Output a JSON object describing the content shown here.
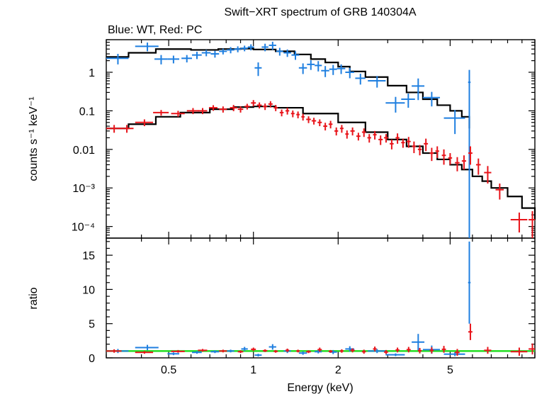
{
  "title": "Swift−XRT spectrum of GRB 140304A",
  "subtitle": "Blue: WT, Red: PC",
  "colors": {
    "wt": "#1f7fe0",
    "pc": "#e8141a",
    "model": "#000000",
    "unity": "#22dd22"
  },
  "chart_data": [
    {
      "type": "scatter",
      "panel": "spectrum",
      "xlabel": "Energy (keV)",
      "ylabel": "counts s⁻¹ keV⁻¹",
      "xscale": "log",
      "yscale": "log",
      "xlim": [
        0.3,
        10
      ],
      "ylim": [
        5e-05,
        7
      ],
      "yticks": [
        {
          "value": 1,
          "label": "1"
        },
        {
          "value": 0.1,
          "label": "0.1"
        },
        {
          "value": 0.01,
          "label": "0.01"
        },
        {
          "value": 0.001,
          "label": "10⁻³"
        },
        {
          "value": 0.0001,
          "label": "10⁻⁴"
        }
      ],
      "series": [
        {
          "name": "WT",
          "x": [
            0.33,
            0.42,
            0.47,
            0.52,
            0.58,
            0.63,
            0.68,
            0.73,
            0.78,
            0.83,
            0.88,
            0.93,
            0.98,
            1.04,
            1.1,
            1.17,
            1.24,
            1.32,
            1.41,
            1.5,
            1.6,
            1.7,
            1.8,
            1.92,
            2.05,
            2.2,
            2.4,
            2.75,
            3.2,
            3.55,
            3.85,
            4.3,
            5.2,
            5.85
          ],
          "xerr": [
            0.03,
            0.04,
            0.025,
            0.025,
            0.025,
            0.025,
            0.025,
            0.025,
            0.025,
            0.025,
            0.025,
            0.025,
            0.025,
            0.03,
            0.03,
            0.035,
            0.035,
            0.04,
            0.045,
            0.05,
            0.05,
            0.05,
            0.06,
            0.06,
            0.07,
            0.08,
            0.1,
            0.2,
            0.25,
            0.2,
            0.2,
            0.3,
            0.45,
            0.06
          ],
          "y": [
            2.3,
            4.7,
            2.2,
            2.2,
            2.3,
            2.8,
            3.2,
            3.0,
            3.5,
            3.8,
            4.0,
            4.2,
            4.5,
            1.3,
            4.5,
            5.0,
            3.5,
            3.2,
            2.8,
            1.3,
            1.6,
            1.5,
            1.1,
            1.2,
            1.25,
            1.0,
            0.7,
            0.6,
            0.16,
            0.2,
            0.44,
            0.22,
            0.065,
            0.55
          ],
          "yerr": [
            0.7,
            1.2,
            0.6,
            0.5,
            0.5,
            0.6,
            0.6,
            0.6,
            0.6,
            0.7,
            0.7,
            0.7,
            0.8,
            0.5,
            1.0,
            1.2,
            0.8,
            0.7,
            0.7,
            0.4,
            0.45,
            0.45,
            0.35,
            0.35,
            0.35,
            0.3,
            0.22,
            0.2,
            0.07,
            0.08,
            0.25,
            0.09,
            0.04,
            0.6
          ]
        },
        {
          "name": "PC",
          "x": [
            0.32,
            0.355,
            0.41,
            0.47,
            0.54,
            0.61,
            0.66,
            0.72,
            0.78,
            0.85,
            0.9,
            0.95,
            1.0,
            1.05,
            1.1,
            1.15,
            1.2,
            1.26,
            1.32,
            1.38,
            1.44,
            1.5,
            1.57,
            1.64,
            1.72,
            1.8,
            1.88,
            1.97,
            2.06,
            2.15,
            2.25,
            2.36,
            2.47,
            2.58,
            2.7,
            2.83,
            2.96,
            3.1,
            3.25,
            3.4,
            3.56,
            3.72,
            3.9,
            4.1,
            4.3,
            4.5,
            4.75,
            5.0,
            5.3,
            5.6,
            5.9,
            6.3,
            6.8,
            7.5,
            8.8,
            9.8
          ],
          "xerr": [
            0.02,
            0.02,
            0.03,
            0.03,
            0.03,
            0.03,
            0.025,
            0.025,
            0.025,
            0.025,
            0.02,
            0.02,
            0.02,
            0.02,
            0.02,
            0.02,
            0.02,
            0.02,
            0.02,
            0.02,
            0.02,
            0.02,
            0.03,
            0.03,
            0.03,
            0.03,
            0.03,
            0.03,
            0.03,
            0.03,
            0.04,
            0.04,
            0.04,
            0.04,
            0.04,
            0.05,
            0.05,
            0.05,
            0.05,
            0.05,
            0.06,
            0.06,
            0.06,
            0.07,
            0.07,
            0.07,
            0.08,
            0.08,
            0.1,
            0.1,
            0.1,
            0.12,
            0.2,
            0.25,
            0.6,
            0.3
          ],
          "y": [
            0.035,
            0.035,
            0.05,
            0.09,
            0.085,
            0.1,
            0.1,
            0.12,
            0.11,
            0.12,
            0.11,
            0.13,
            0.16,
            0.14,
            0.13,
            0.15,
            0.12,
            0.09,
            0.1,
            0.085,
            0.08,
            0.07,
            0.06,
            0.055,
            0.05,
            0.04,
            0.045,
            0.03,
            0.035,
            0.025,
            0.03,
            0.022,
            0.028,
            0.02,
            0.024,
            0.018,
            0.02,
            0.014,
            0.02,
            0.015,
            0.016,
            0.012,
            0.01,
            0.014,
            0.008,
            0.009,
            0.007,
            0.006,
            0.0045,
            0.005,
            0.008,
            0.004,
            0.0025,
            0.0009,
            0.00015,
            0.00015
          ],
          "yerr": [
            0.008,
            0.008,
            0.01,
            0.015,
            0.015,
            0.018,
            0.018,
            0.02,
            0.02,
            0.022,
            0.02,
            0.022,
            0.03,
            0.025,
            0.025,
            0.028,
            0.022,
            0.018,
            0.02,
            0.017,
            0.016,
            0.014,
            0.012,
            0.011,
            0.01,
            0.009,
            0.01,
            0.007,
            0.008,
            0.006,
            0.007,
            0.005,
            0.007,
            0.005,
            0.006,
            0.005,
            0.005,
            0.004,
            0.006,
            0.004,
            0.005,
            0.004,
            0.003,
            0.005,
            0.003,
            0.003,
            0.003,
            0.002,
            0.0018,
            0.002,
            0.004,
            0.0018,
            0.0012,
            0.0004,
            8e-05,
            0.0001
          ]
        }
      ],
      "models": [
        {
          "name": "WT",
          "x": [
            0.3,
            0.36,
            0.45,
            0.6,
            0.75,
            0.9,
            1.0,
            1.2,
            1.4,
            1.6,
            1.8,
            2.0,
            2.2,
            2.5,
            3.0,
            3.5,
            4.0,
            4.5,
            5.0,
            5.5,
            5.85
          ],
          "y": [
            2.5,
            3.2,
            4.0,
            3.8,
            4.0,
            4.1,
            3.9,
            3.5,
            2.9,
            2.2,
            1.8,
            1.4,
            1.05,
            0.75,
            0.45,
            0.3,
            0.2,
            0.14,
            0.1,
            0.07,
            0.035
          ]
        },
        {
          "name": "PC",
          "x": [
            0.3,
            0.36,
            0.45,
            0.55,
            0.7,
            0.85,
            1.0,
            1.2,
            1.5,
            2.0,
            2.5,
            3.0,
            3.5,
            4.0,
            4.5,
            5.0,
            5.5,
            6.0,
            6.5,
            7.0,
            8.0,
            9.0,
            10.0
          ],
          "y": [
            0.035,
            0.045,
            0.07,
            0.09,
            0.11,
            0.125,
            0.13,
            0.12,
            0.085,
            0.05,
            0.028,
            0.018,
            0.012,
            0.008,
            0.0055,
            0.004,
            0.003,
            0.002,
            0.0015,
            0.001,
            0.0006,
            0.0003,
            0.00015
          ]
        }
      ]
    },
    {
      "type": "scatter",
      "panel": "ratio",
      "xlabel": "Energy (keV)",
      "ylabel": "ratio",
      "xscale": "log",
      "xlim": [
        0.3,
        10
      ],
      "ylim": [
        0,
        17.5
      ],
      "yticks": [
        0,
        5,
        10,
        15
      ],
      "xticks": [
        {
          "value": 0.5,
          "label": "0.5"
        },
        {
          "value": 1,
          "label": "1"
        },
        {
          "value": 2,
          "label": "2"
        },
        {
          "value": 5,
          "label": "5"
        }
      ],
      "reference_line": 1,
      "series": [
        {
          "name": "WT",
          "x": [
            0.33,
            0.42,
            0.52,
            0.63,
            0.73,
            0.83,
            0.93,
            1.04,
            1.17,
            1.32,
            1.5,
            1.7,
            1.92,
            2.2,
            2.75,
            3.2,
            3.85,
            4.3,
            5.2,
            5.85
          ],
          "xerr": [
            0.03,
            0.04,
            0.025,
            0.025,
            0.025,
            0.025,
            0.025,
            0.03,
            0.035,
            0.04,
            0.05,
            0.05,
            0.06,
            0.08,
            0.2,
            0.25,
            0.2,
            0.3,
            0.45,
            0.06
          ],
          "y": [
            1.0,
            1.5,
            0.6,
            0.8,
            0.9,
            1.0,
            1.3,
            0.4,
            1.6,
            1.0,
            0.7,
            0.9,
            0.85,
            1.3,
            1.0,
            0.45,
            2.3,
            1.2,
            0.55,
            11.0
          ],
          "yerr": [
            0.3,
            0.4,
            0.2,
            0.2,
            0.2,
            0.2,
            0.3,
            0.2,
            0.4,
            0.3,
            0.25,
            0.25,
            0.3,
            0.4,
            0.3,
            0.2,
            1.2,
            0.6,
            0.3,
            6.0
          ]
        },
        {
          "name": "PC",
          "x": [
            0.32,
            0.41,
            0.54,
            0.66,
            0.78,
            0.9,
            1.0,
            1.1,
            1.2,
            1.32,
            1.44,
            1.57,
            1.72,
            1.88,
            2.06,
            2.25,
            2.47,
            2.7,
            2.96,
            3.25,
            3.56,
            3.9,
            4.3,
            4.75,
            5.3,
            5.9,
            6.8,
            8.8,
            9.8
          ],
          "xerr": [
            0.02,
            0.03,
            0.03,
            0.025,
            0.025,
            0.02,
            0.02,
            0.02,
            0.02,
            0.02,
            0.02,
            0.03,
            0.03,
            0.03,
            0.03,
            0.04,
            0.04,
            0.04,
            0.05,
            0.05,
            0.06,
            0.06,
            0.07,
            0.08,
            0.1,
            0.1,
            0.2,
            0.6,
            0.3
          ],
          "y": [
            1.0,
            0.8,
            0.95,
            1.1,
            1.0,
            0.9,
            1.25,
            1.05,
            0.95,
            1.1,
            1.0,
            0.9,
            1.2,
            0.95,
            1.0,
            1.1,
            0.9,
            1.3,
            0.85,
            1.15,
            1.2,
            1.05,
            1.1,
            1.25,
            0.8,
            3.8,
            1.1,
            0.9,
            1.3
          ],
          "yerr": [
            0.25,
            0.2,
            0.2,
            0.2,
            0.2,
            0.2,
            0.25,
            0.2,
            0.2,
            0.25,
            0.2,
            0.2,
            0.3,
            0.2,
            0.25,
            0.3,
            0.3,
            0.35,
            0.3,
            0.35,
            0.4,
            0.4,
            0.45,
            0.5,
            0.5,
            1.2,
            0.5,
            0.6,
            0.8
          ]
        }
      ]
    }
  ]
}
